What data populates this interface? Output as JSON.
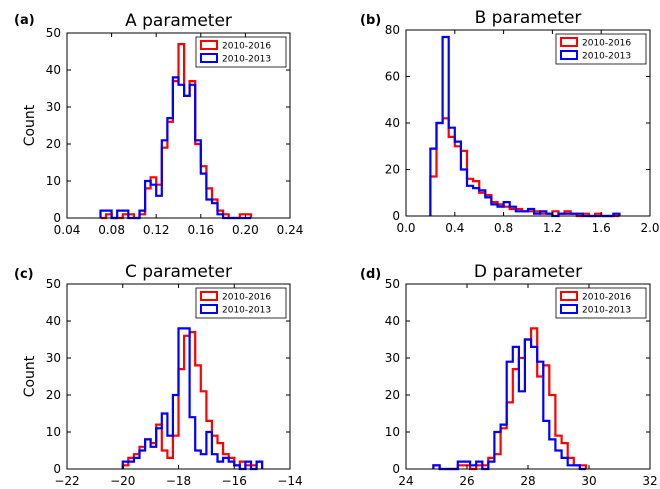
{
  "colors": {
    "series_a": "#ff0000",
    "series_b": "#0000ff",
    "axis": "#000000"
  },
  "chart_data": [
    {
      "type": "histogram",
      "panel": "(a)",
      "title": "A parameter",
      "ylabel": "Count",
      "xlim": [
        0.04,
        0.24
      ],
      "ylim": [
        0,
        50
      ],
      "xticks": [
        0.04,
        0.08,
        0.12,
        0.16,
        0.2,
        0.24
      ],
      "xtick_labels": [
        "0.04",
        "0.08",
        "0.12",
        "0.16",
        "0.20",
        "0.24"
      ],
      "yticks": [
        0,
        10,
        20,
        30,
        40,
        50
      ],
      "legend_position": "top-right",
      "series": [
        {
          "name": "2010-2016",
          "color": "#ff0000",
          "bin_edges": [
            0.07,
            0.075,
            0.08,
            0.085,
            0.09,
            0.095,
            0.1,
            0.105,
            0.11,
            0.115,
            0.12,
            0.125,
            0.13,
            0.135,
            0.14,
            0.145,
            0.15,
            0.155,
            0.16,
            0.165,
            0.17,
            0.175,
            0.18,
            0.185,
            0.19,
            0.195,
            0.2,
            0.205
          ],
          "counts": [
            0,
            1,
            0,
            0,
            1,
            1,
            0,
            1,
            8,
            11,
            9,
            19,
            26,
            37,
            47,
            33,
            37,
            20,
            14,
            8,
            5,
            2,
            1,
            0,
            0,
            1,
            1
          ]
        },
        {
          "name": "2010-2013",
          "color": "#0000ff",
          "bin_edges": [
            0.07,
            0.075,
            0.08,
            0.085,
            0.09,
            0.095,
            0.1,
            0.105,
            0.11,
            0.115,
            0.12,
            0.125,
            0.13,
            0.135,
            0.14,
            0.145,
            0.15,
            0.155,
            0.16,
            0.165,
            0.17,
            0.175,
            0.18,
            0.185,
            0.19,
            0.195,
            0.2,
            0.205
          ],
          "counts": [
            2,
            2,
            0,
            2,
            2,
            0,
            0,
            2,
            10,
            9,
            6,
            21,
            27,
            38,
            36,
            33,
            36,
            21,
            12,
            5,
            4,
            1,
            0,
            0,
            0,
            0,
            0
          ]
        }
      ]
    },
    {
      "type": "histogram",
      "panel": "(b)",
      "title": "B parameter",
      "ylabel": "",
      "xlim": [
        0.0,
        2.0
      ],
      "ylim": [
        0,
        80
      ],
      "xticks": [
        0.0,
        0.4,
        0.8,
        1.2,
        1.6,
        2.0
      ],
      "xtick_labels": [
        "0.0",
        "0.4",
        "0.8",
        "1.2",
        "1.6",
        "2.0"
      ],
      "yticks": [
        0,
        20,
        40,
        60,
        80
      ],
      "legend_position": "top-right",
      "series": [
        {
          "name": "2010-2016",
          "color": "#ff0000",
          "bin_edges": [
            0.2,
            0.25,
            0.3,
            0.35,
            0.4,
            0.45,
            0.5,
            0.55,
            0.6,
            0.65,
            0.7,
            0.75,
            0.8,
            0.85,
            0.9,
            0.95,
            1.0,
            1.05,
            1.1,
            1.15,
            1.2,
            1.25,
            1.3,
            1.35,
            1.4,
            1.45,
            1.5,
            1.55,
            1.6,
            1.65,
            1.7,
            1.75
          ],
          "counts": [
            17,
            40,
            42,
            34,
            30,
            28,
            16,
            15,
            10,
            9,
            6,
            5,
            4,
            3,
            3,
            2,
            2,
            2,
            1,
            1,
            2,
            1,
            2,
            1,
            0,
            1,
            0,
            1,
            0,
            0,
            0
          ]
        },
        {
          "name": "2010-2013",
          "color": "#0000ff",
          "bin_edges": [
            0.2,
            0.25,
            0.3,
            0.35,
            0.4,
            0.45,
            0.5,
            0.55,
            0.6,
            0.65,
            0.7,
            0.75,
            0.8,
            0.85,
            0.9,
            0.95,
            1.0,
            1.05,
            1.1,
            1.15,
            1.2,
            1.25,
            1.3,
            1.35,
            1.4,
            1.45,
            1.5,
            1.55,
            1.6,
            1.65,
            1.7,
            1.75
          ],
          "counts": [
            29,
            40,
            77,
            38,
            32,
            20,
            13,
            12,
            11,
            8,
            5,
            4,
            6,
            4,
            2,
            2,
            3,
            1,
            2,
            1,
            0,
            1,
            1,
            1,
            1,
            0,
            0,
            0,
            0,
            0,
            1
          ]
        }
      ]
    },
    {
      "type": "histogram",
      "panel": "(c)",
      "title": "C parameter",
      "ylabel": "Count",
      "xlim": [
        -22,
        -14
      ],
      "ylim": [
        0,
        50
      ],
      "xticks": [
        -22,
        -20,
        -18,
        -16,
        -14
      ],
      "xtick_labels": [
        "−22",
        "−20",
        "−18",
        "−16",
        "−14"
      ],
      "yticks": [
        0,
        10,
        20,
        30,
        40,
        50
      ],
      "legend_position": "top-right",
      "series": [
        {
          "name": "2010-2016",
          "color": "#ff0000",
          "bin_edges": [
            -20.0,
            -19.8,
            -19.6,
            -19.4,
            -19.2,
            -19.0,
            -18.8,
            -18.6,
            -18.4,
            -18.2,
            -18.0,
            -17.8,
            -17.6,
            -17.4,
            -17.2,
            -17.0,
            -16.8,
            -16.6,
            -16.4,
            -16.2,
            -16.0,
            -15.8,
            -15.6,
            -15.4,
            -15.2,
            -15.0
          ],
          "counts": [
            1,
            3,
            4,
            6,
            8,
            7,
            12,
            5,
            3,
            9,
            27,
            36,
            37,
            28,
            21,
            13,
            9,
            7,
            4,
            3,
            1,
            2,
            1,
            1,
            2
          ]
        },
        {
          "name": "2010-2013",
          "color": "#0000ff",
          "bin_edges": [
            -20.0,
            -19.8,
            -19.6,
            -19.4,
            -19.2,
            -19.0,
            -18.8,
            -18.6,
            -18.4,
            -18.2,
            -18.0,
            -17.8,
            -17.6,
            -17.4,
            -17.2,
            -17.0,
            -16.8,
            -16.6,
            -16.4,
            -16.2,
            -16.0,
            -15.8,
            -15.6,
            -15.4,
            -15.2,
            -15.0
          ],
          "counts": [
            2,
            2,
            3,
            5,
            8,
            6,
            11,
            15,
            9,
            20,
            38,
            38,
            14,
            5,
            4,
            10,
            4,
            2,
            3,
            2,
            1,
            0,
            2,
            0,
            2
          ]
        }
      ]
    },
    {
      "type": "histogram",
      "panel": "(d)",
      "title": "D parameter",
      "ylabel": "",
      "xlim": [
        24,
        32
      ],
      "ylim": [
        0,
        50
      ],
      "xticks": [
        24,
        26,
        28,
        30,
        32
      ],
      "xtick_labels": [
        "24",
        "26",
        "28",
        "30",
        "32"
      ],
      "yticks": [
        0,
        10,
        20,
        30,
        40,
        50
      ],
      "legend_position": "top-right",
      "series": [
        {
          "name": "2010-2016",
          "color": "#ff0000",
          "bin_edges": [
            24.9,
            25.1,
            25.3,
            25.5,
            25.7,
            25.9,
            26.1,
            26.3,
            26.5,
            26.7,
            26.9,
            27.1,
            27.3,
            27.5,
            27.7,
            27.9,
            28.1,
            28.3,
            28.5,
            28.7,
            28.9,
            29.1,
            29.3,
            29.5,
            29.7,
            29.9
          ],
          "counts": [
            1,
            0,
            0,
            0,
            1,
            1,
            0,
            1,
            1,
            3,
            4,
            11,
            18,
            27,
            30,
            35,
            38,
            25,
            28,
            20,
            9,
            7,
            3,
            1,
            1
          ]
        },
        {
          "name": "2010-2013",
          "color": "#0000ff",
          "bin_edges": [
            24.9,
            25.1,
            25.3,
            25.5,
            25.7,
            25.9,
            26.1,
            26.3,
            26.5,
            26.7,
            26.9,
            27.1,
            27.3,
            27.5,
            27.7,
            27.9,
            28.1,
            28.3,
            28.5,
            28.7,
            28.9,
            29.1,
            29.3,
            29.5,
            29.7,
            29.9
          ],
          "counts": [
            1,
            0,
            0,
            0,
            2,
            2,
            1,
            2,
            0,
            2,
            10,
            12,
            29,
            33,
            21,
            35,
            33,
            29,
            13,
            8,
            5,
            3,
            1,
            1,
            0
          ]
        }
      ]
    }
  ]
}
